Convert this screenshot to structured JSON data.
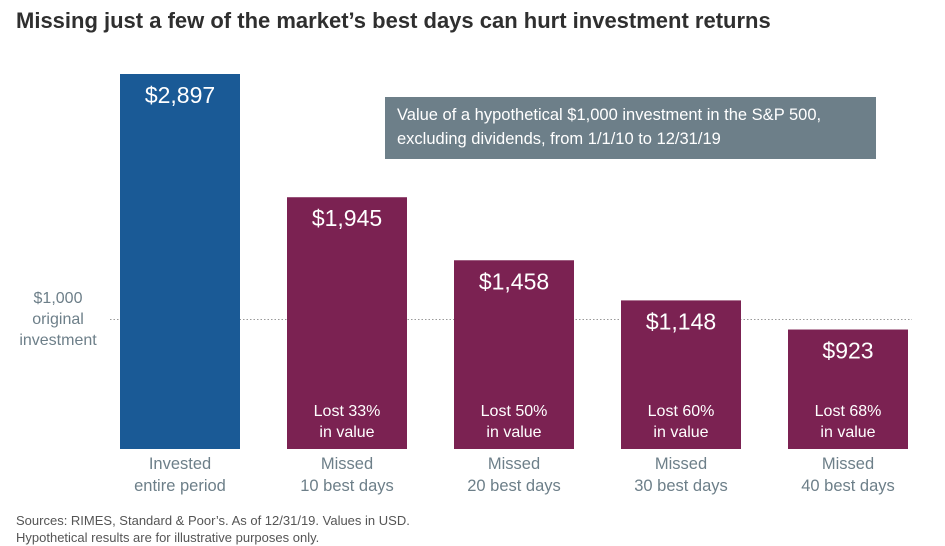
{
  "title": "Missing just a few of the market’s best days can hurt investment returns",
  "callout": {
    "line1": "Value of a hypothetical $1,000 investment in the S&P 500,",
    "line2": "excluding dividends, from 1/1/10 to 12/31/19"
  },
  "sources": {
    "line1": "Sources: RIMES, Standard & Poor’s. As of 12/31/19. Values in USD.",
    "line2": "Hypothetical results are for illustrative purposes only."
  },
  "chart_data": {
    "type": "bar",
    "unit": "USD",
    "ylim": [
      0,
      2897
    ],
    "reference_line": {
      "value": 1000,
      "label_lines": [
        "$1,000",
        "original",
        "investment"
      ]
    },
    "bars": [
      {
        "value": 2897,
        "value_label": "$2,897",
        "category_lines": [
          "Invested",
          "entire period"
        ],
        "loss_lines": [],
        "color": "#1a5a96"
      },
      {
        "value": 1945,
        "value_label": "$1,945",
        "category_lines": [
          "Missed",
          "10 best days"
        ],
        "loss_lines": [
          "Lost 33%",
          "in value"
        ],
        "color": "#7b2252"
      },
      {
        "value": 1458,
        "value_label": "$1,458",
        "category_lines": [
          "Missed",
          "20 best days"
        ],
        "loss_lines": [
          "Lost 50%",
          "in value"
        ],
        "color": "#7b2252"
      },
      {
        "value": 1148,
        "value_label": "$1,148",
        "category_lines": [
          "Missed",
          "30 best days"
        ],
        "loss_lines": [
          "Lost 60%",
          "in value"
        ],
        "color": "#7b2252"
      },
      {
        "value": 923,
        "value_label": "$923",
        "category_lines": [
          "Missed",
          "40 best days"
        ],
        "loss_lines": [
          "Lost 68%",
          "in value"
        ],
        "color": "#7b2252"
      }
    ],
    "colors": {
      "invested": "#1a5a96",
      "missed": "#7b2252",
      "callout_bg": "#6d7f89",
      "category_text": "#6d7f89"
    }
  }
}
